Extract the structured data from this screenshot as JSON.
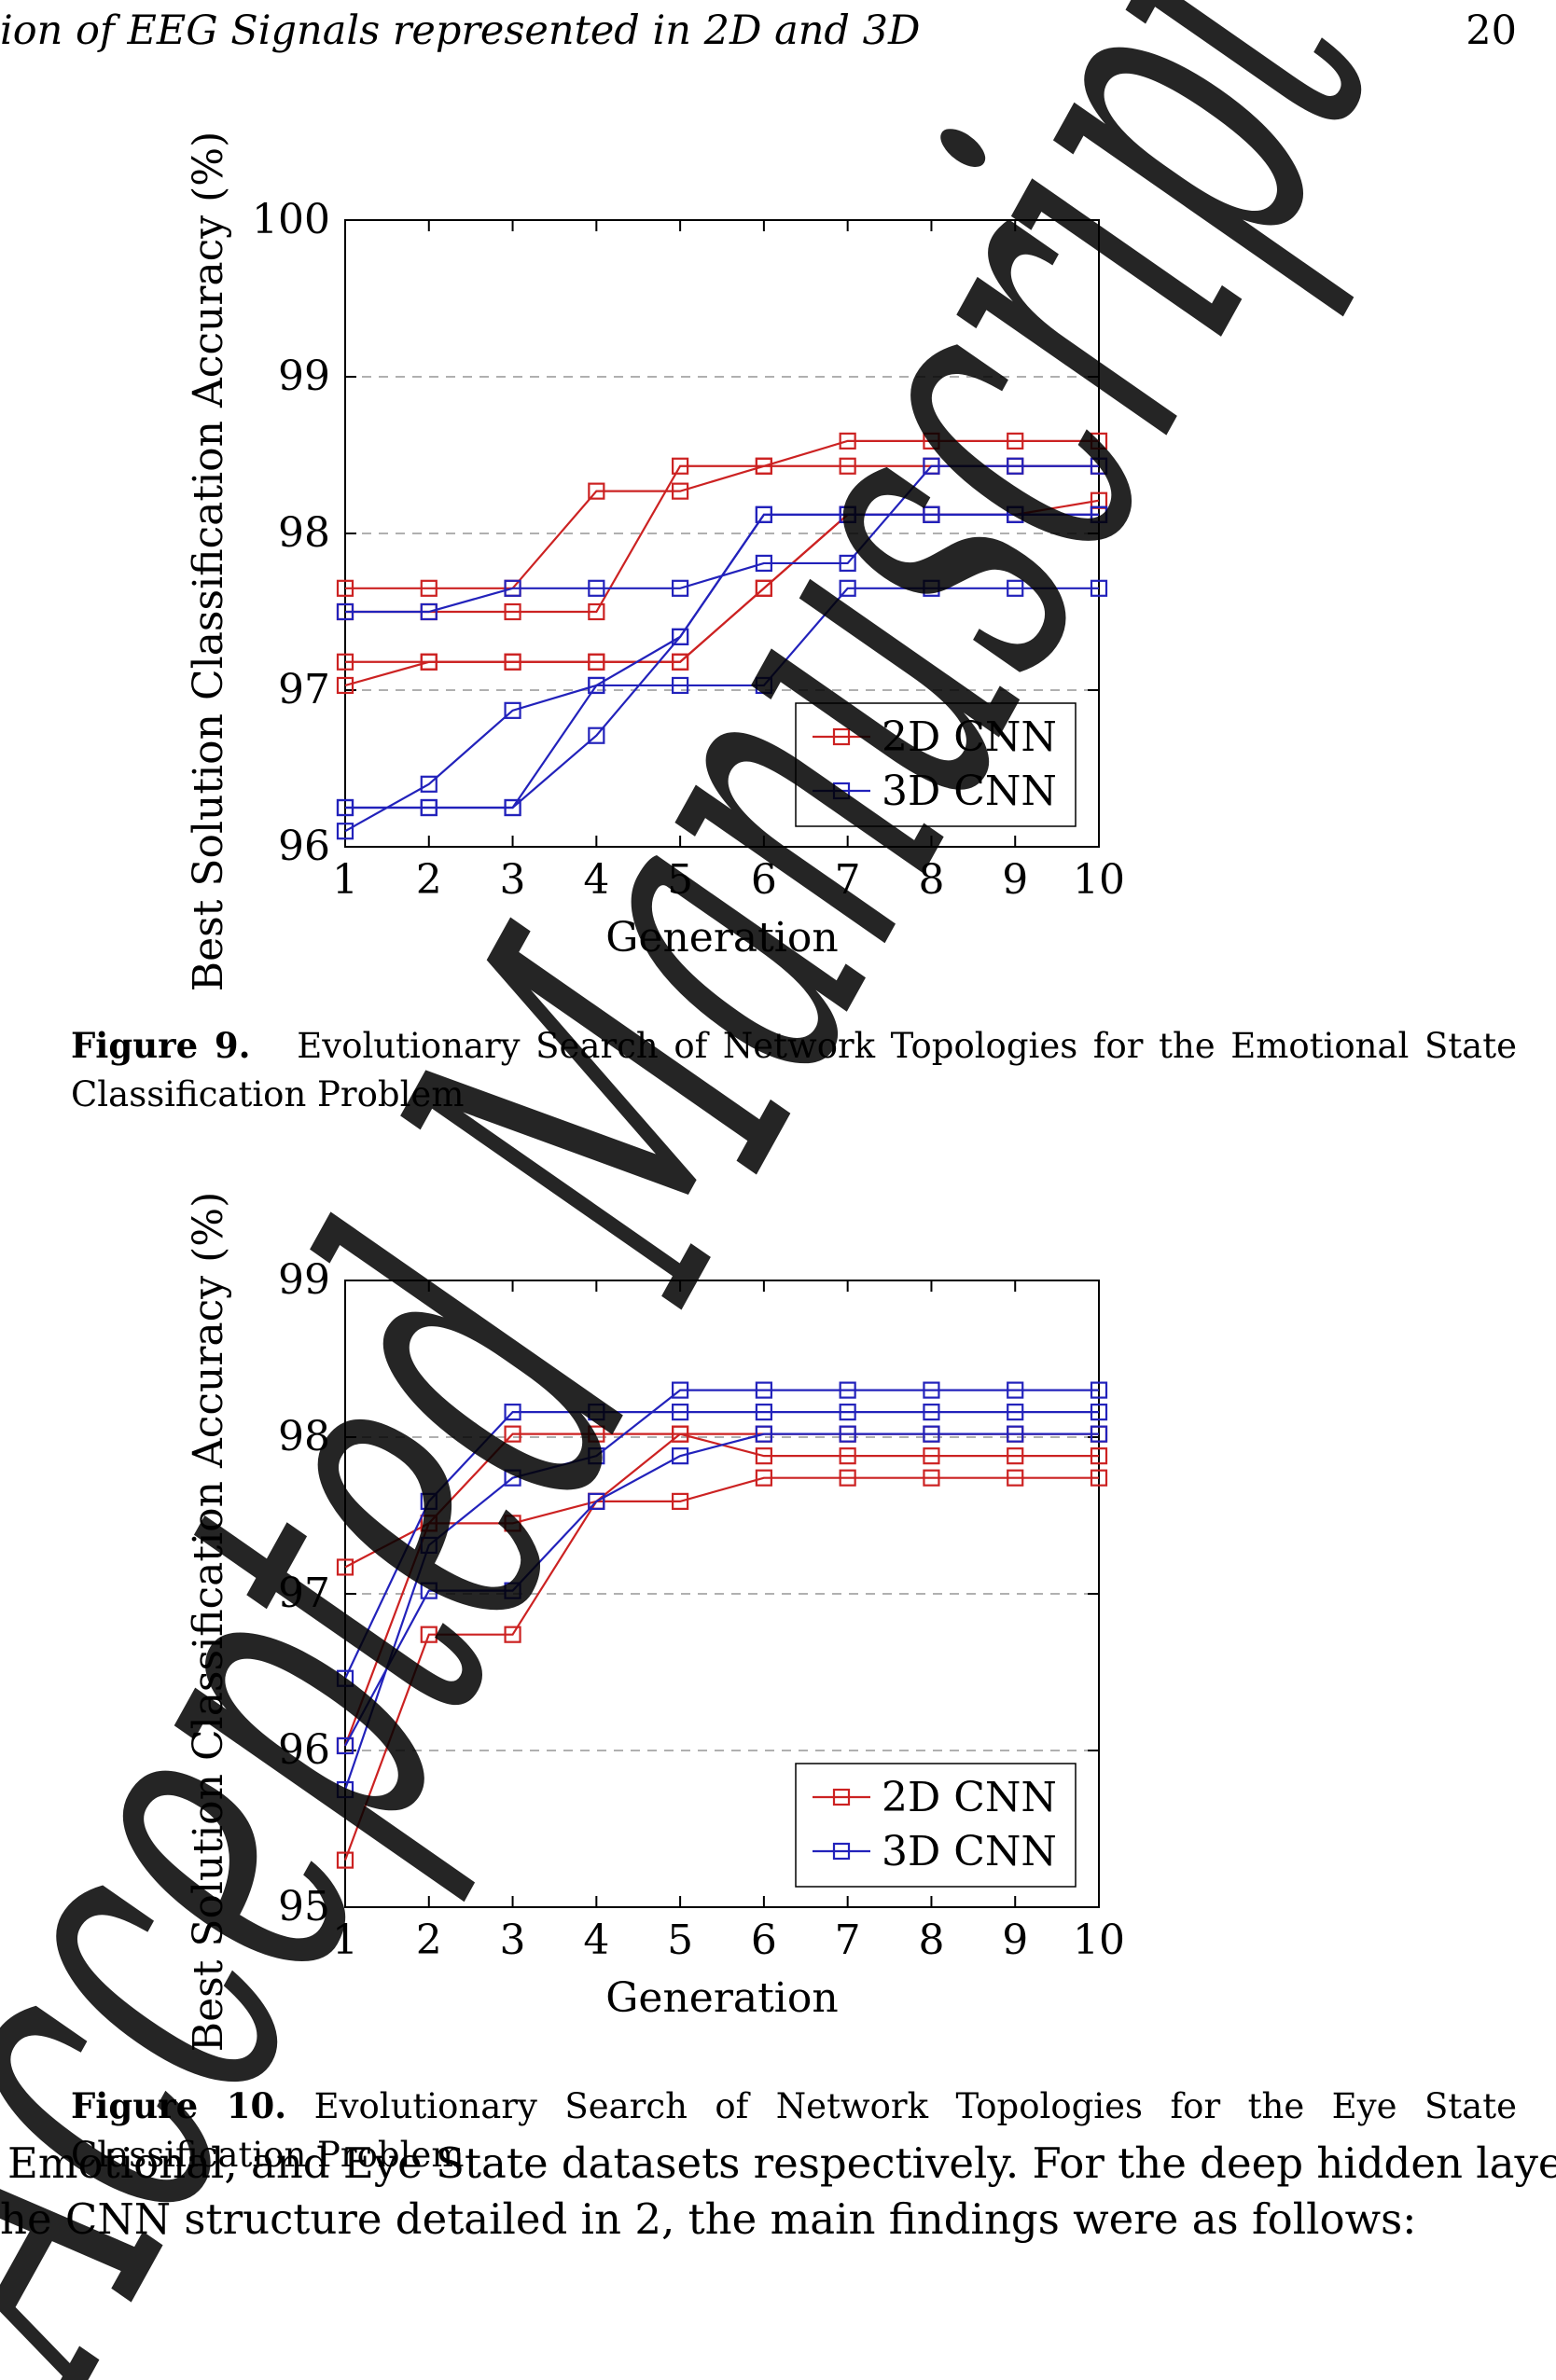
{
  "header": {
    "running_title": "ion of EEG Signals represented in 2D and 3D",
    "page_number": "20"
  },
  "figures": [
    {
      "label": "Figure 9.",
      "caption": "Evolutionary Search of Network Topologies for the Emotional State Classification Problem"
    },
    {
      "label": "Figure 10.",
      "caption": "Evolutionary Search of Network Topologies for the Eye State Classification Problem"
    }
  ],
  "body_text": {
    "line1": "Emotional, and Eye State datasets respectively. For the deep hidden layers",
    "line2": "he CNN structure detailed in 2, the main findings were as follows:"
  },
  "watermark": {
    "text": "Accepted Manuscript",
    "color": "#a0a0a0"
  },
  "colors": {
    "series_2d": "#cc2222",
    "series_3d": "#2222bb",
    "grid": "#b0b0b0"
  },
  "chart_data": [
    {
      "type": "line",
      "xlabel": "Generation",
      "ylabel": "Best Solution Classification Accuracy (%)",
      "x": [
        1,
        2,
        3,
        4,
        5,
        6,
        7,
        8,
        9,
        10
      ],
      "xlim": [
        1,
        10
      ],
      "ylim": [
        96,
        100
      ],
      "yticks": [
        96,
        97,
        98,
        99,
        100
      ],
      "grid": "horizontal dashed",
      "legend_position": "bottom-right",
      "legend": [
        "2D CNN",
        "3D CNN"
      ],
      "series": [
        {
          "group": "2D CNN",
          "values": [
            97.65,
            97.65,
            97.65,
            98.27,
            98.27,
            98.43,
            98.59,
            98.59,
            98.59,
            98.59
          ]
        },
        {
          "group": "2D CNN",
          "values": [
            97.5,
            97.5,
            97.5,
            97.5,
            98.43,
            98.43,
            98.43,
            98.43,
            98.43,
            98.43
          ]
        },
        {
          "group": "2D CNN",
          "values": [
            97.18,
            97.18,
            97.18,
            97.18,
            97.18,
            97.65,
            98.12,
            98.12,
            98.12,
            98.21
          ]
        },
        {
          "group": "2D CNN",
          "values": [
            97.03,
            97.18,
            97.18,
            97.18,
            97.18,
            97.65,
            98.12,
            98.12,
            98.12,
            98.12
          ]
        },
        {
          "group": "3D CNN",
          "values": [
            97.5,
            97.5,
            97.65,
            97.65,
            97.65,
            97.81,
            97.81,
            98.43,
            98.43,
            98.43
          ]
        },
        {
          "group": "3D CNN",
          "values": [
            96.25,
            96.25,
            96.25,
            97.03,
            97.03,
            97.03,
            97.65,
            97.65,
            97.65,
            97.65
          ]
        },
        {
          "group": "3D CNN",
          "values": [
            96.1,
            96.4,
            96.87,
            97.03,
            97.34,
            98.12,
            98.12,
            98.12,
            98.12,
            98.12
          ]
        },
        {
          "group": "3D CNN",
          "values": [
            96.25,
            96.25,
            96.25,
            96.71,
            97.34,
            98.12,
            98.12,
            98.12,
            98.12,
            98.12
          ]
        }
      ]
    },
    {
      "type": "line",
      "xlabel": "Generation",
      "ylabel": "Best Solution Classification Accuracy (%)",
      "x": [
        1,
        2,
        3,
        4,
        5,
        6,
        7,
        8,
        9,
        10
      ],
      "xlim": [
        1,
        10
      ],
      "ylim": [
        95,
        99
      ],
      "yticks": [
        95,
        96,
        97,
        98,
        99
      ],
      "grid": "horizontal dashed",
      "legend_position": "bottom-right",
      "legend": [
        "2D CNN",
        "3D CNN"
      ],
      "series": [
        {
          "group": "2D CNN",
          "values": [
            97.17,
            97.45,
            97.45,
            97.59,
            97.59,
            97.74,
            97.74,
            97.74,
            97.74,
            97.74
          ]
        },
        {
          "group": "2D CNN",
          "values": [
            95.3,
            96.74,
            96.74,
            97.59,
            98.02,
            98.02,
            98.02,
            98.02,
            98.02,
            98.02
          ]
        },
        {
          "group": "2D CNN",
          "values": [
            96.03,
            97.45,
            98.02,
            98.02,
            98.02,
            97.88,
            97.88,
            97.88,
            97.88,
            97.88
          ]
        },
        {
          "group": "3D CNN",
          "values": [
            96.46,
            97.59,
            98.16,
            98.16,
            98.16,
            98.16,
            98.16,
            98.16,
            98.16,
            98.16
          ]
        },
        {
          "group": "3D CNN",
          "values": [
            95.75,
            97.31,
            97.74,
            97.88,
            98.3,
            98.3,
            98.3,
            98.3,
            98.3,
            98.3
          ]
        },
        {
          "group": "3D CNN",
          "values": [
            96.03,
            97.02,
            97.02,
            97.59,
            97.88,
            98.02,
            98.02,
            98.02,
            98.02,
            98.02
          ]
        }
      ]
    }
  ]
}
